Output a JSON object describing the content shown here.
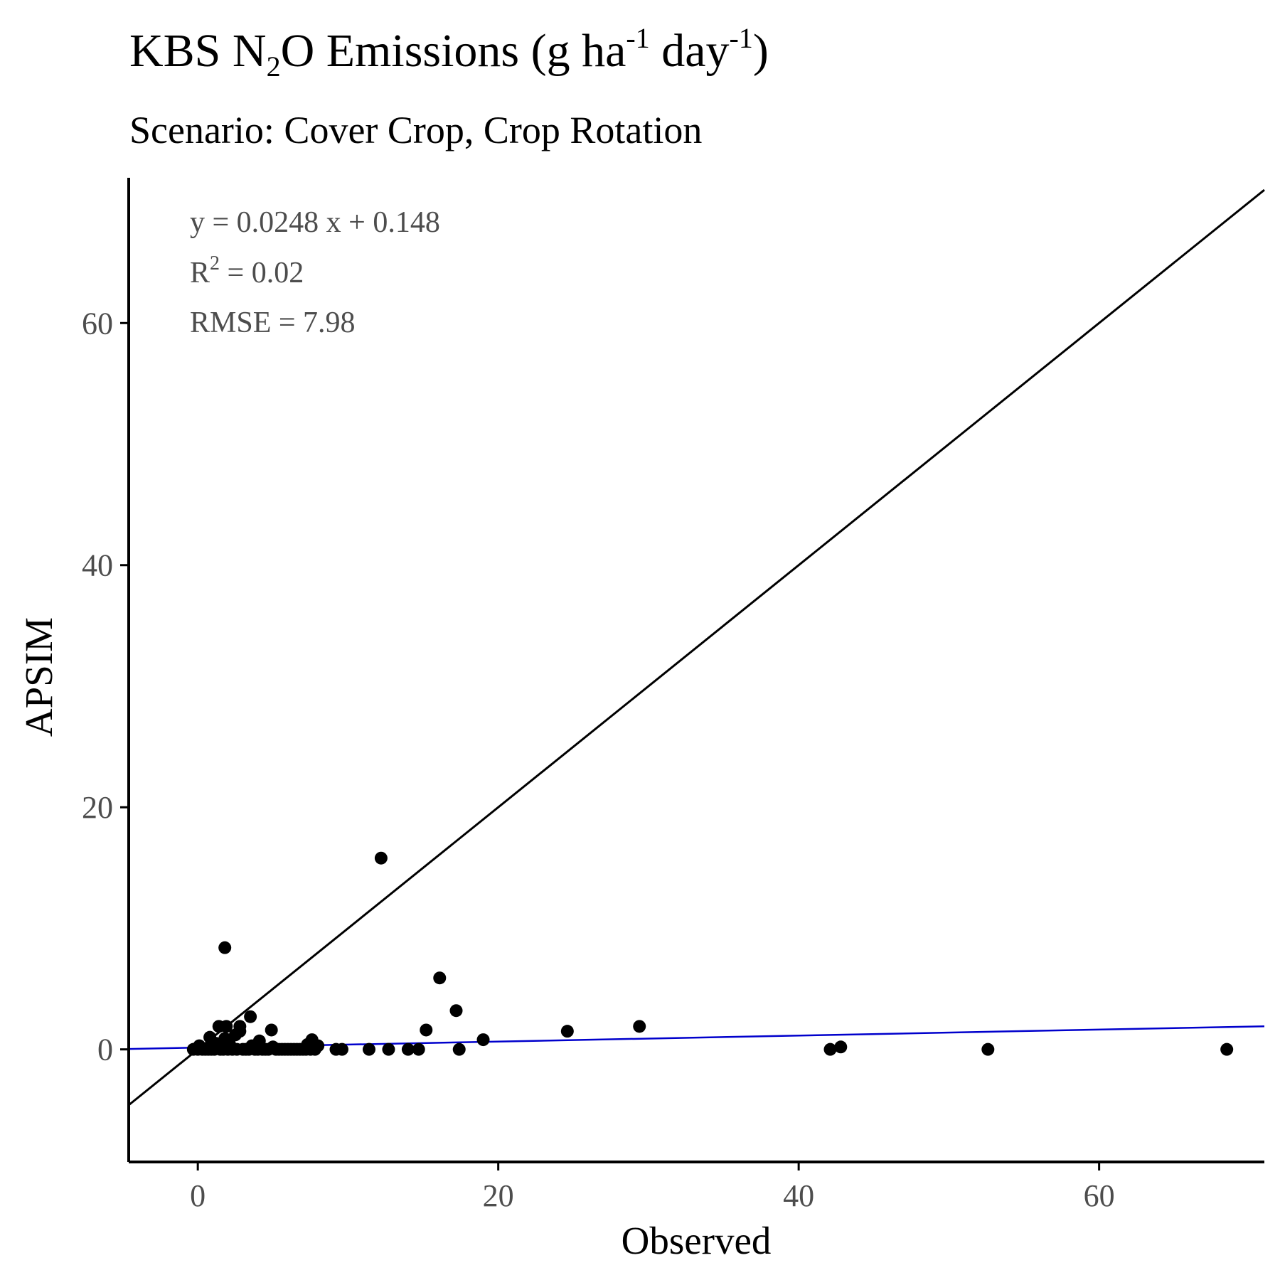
{
  "chart_data": {
    "type": "scatter",
    "title": {
      "prefix": "KBS N",
      "sub": "2",
      "mid": "O Emissions (g ha",
      "sup1": "-1",
      "mid2": " day",
      "sup2": "-1",
      "suffix": ")"
    },
    "subtitle": "Scenario: Cover Crop, Crop Rotation",
    "xlabel": "Observed",
    "ylabel": "APSIM",
    "xlim": [
      -4.6,
      71
    ],
    "ylim": [
      -9.3,
      72
    ],
    "xticks": [
      0,
      20,
      40,
      60
    ],
    "yticks": [
      0,
      20,
      40,
      60
    ],
    "xtick_labels": [
      "0",
      "20",
      "40",
      "60"
    ],
    "ytick_labels": [
      "0",
      "20",
      "40",
      "60"
    ],
    "grid": false,
    "annotations": {
      "equation": "y = 0.0248 x + 0.148",
      "r2_prefix": "R",
      "r2_sup": "2",
      "r2_suffix": " = 0.02",
      "rmse": "RMSE = 7.98"
    },
    "reference_line": {
      "label": "1:1",
      "slope": 1,
      "intercept": 0,
      "color": "#000000"
    },
    "fit_line": {
      "slope": 0.0248,
      "intercept": 0.148,
      "color": "#0000cc"
    },
    "points_color": "#000000",
    "points": [
      {
        "x": -0.3,
        "y": 0
      },
      {
        "x": 0.0,
        "y": 0
      },
      {
        "x": 0.1,
        "y": 0.3
      },
      {
        "x": 0.3,
        "y": 0
      },
      {
        "x": 0.5,
        "y": 0
      },
      {
        "x": 0.7,
        "y": 0
      },
      {
        "x": 0.8,
        "y": 1.0
      },
      {
        "x": 0.9,
        "y": 0
      },
      {
        "x": 1.1,
        "y": 0
      },
      {
        "x": 1.2,
        "y": 0.5
      },
      {
        "x": 1.4,
        "y": 1.9
      },
      {
        "x": 1.5,
        "y": 0
      },
      {
        "x": 1.6,
        "y": 0.4
      },
      {
        "x": 1.7,
        "y": 0
      },
      {
        "x": 1.8,
        "y": 0.9
      },
      {
        "x": 1.8,
        "y": 8.4
      },
      {
        "x": 1.9,
        "y": 1.9
      },
      {
        "x": 2.0,
        "y": 0
      },
      {
        "x": 2.1,
        "y": 0.5
      },
      {
        "x": 2.3,
        "y": 0
      },
      {
        "x": 2.5,
        "y": 1.2
      },
      {
        "x": 2.6,
        "y": 0
      },
      {
        "x": 2.8,
        "y": 1.5
      },
      {
        "x": 2.8,
        "y": 1.9
      },
      {
        "x": 3.0,
        "y": 0
      },
      {
        "x": 3.2,
        "y": 0
      },
      {
        "x": 3.4,
        "y": 0
      },
      {
        "x": 3.5,
        "y": 2.7
      },
      {
        "x": 3.6,
        "y": 0.3
      },
      {
        "x": 3.8,
        "y": 0
      },
      {
        "x": 4.0,
        "y": 0
      },
      {
        "x": 4.1,
        "y": 0.7
      },
      {
        "x": 4.3,
        "y": 0
      },
      {
        "x": 4.5,
        "y": 0
      },
      {
        "x": 4.7,
        "y": 0
      },
      {
        "x": 4.9,
        "y": 1.6
      },
      {
        "x": 5.0,
        "y": 0.2
      },
      {
        "x": 5.2,
        "y": 0
      },
      {
        "x": 5.4,
        "y": 0
      },
      {
        "x": 5.6,
        "y": 0
      },
      {
        "x": 5.8,
        "y": 0
      },
      {
        "x": 6.0,
        "y": 0
      },
      {
        "x": 6.2,
        "y": 0
      },
      {
        "x": 6.4,
        "y": 0
      },
      {
        "x": 6.6,
        "y": 0
      },
      {
        "x": 6.8,
        "y": 0
      },
      {
        "x": 7.0,
        "y": 0
      },
      {
        "x": 7.2,
        "y": 0
      },
      {
        "x": 7.3,
        "y": 0.4
      },
      {
        "x": 7.5,
        "y": 0
      },
      {
        "x": 7.6,
        "y": 0.8
      },
      {
        "x": 7.8,
        "y": 0
      },
      {
        "x": 8.0,
        "y": 0.3
      },
      {
        "x": 9.2,
        "y": 0
      },
      {
        "x": 9.6,
        "y": 0
      },
      {
        "x": 11.4,
        "y": 0
      },
      {
        "x": 12.2,
        "y": 15.8
      },
      {
        "x": 12.7,
        "y": 0
      },
      {
        "x": 14.0,
        "y": 0
      },
      {
        "x": 14.7,
        "y": 0
      },
      {
        "x": 15.2,
        "y": 1.6
      },
      {
        "x": 16.1,
        "y": 5.9
      },
      {
        "x": 17.2,
        "y": 3.2
      },
      {
        "x": 17.4,
        "y": 0
      },
      {
        "x": 19.0,
        "y": 0.8
      },
      {
        "x": 24.6,
        "y": 1.5
      },
      {
        "x": 29.4,
        "y": 1.9
      },
      {
        "x": 42.1,
        "y": 0
      },
      {
        "x": 42.8,
        "y": 0.2
      },
      {
        "x": 52.6,
        "y": 0
      },
      {
        "x": 68.5,
        "y": 0
      }
    ]
  }
}
